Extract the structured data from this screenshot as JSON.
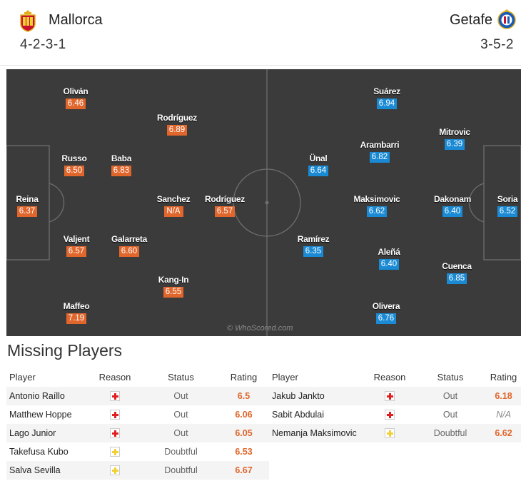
{
  "home": {
    "name": "Mallorca",
    "formation": "4-2-3-1",
    "crest": "mallorca-crest-icon",
    "color": "#e0662c",
    "players": [
      {
        "name": "Oliván",
        "rating": "6.46"
      },
      {
        "name": "Rodríguez",
        "rating": "6.89"
      },
      {
        "name": "Russo",
        "rating": "6.50"
      },
      {
        "name": "Baba",
        "rating": "6.83"
      },
      {
        "name": "Reina",
        "rating": "6.37"
      },
      {
        "name": "Sanchez",
        "rating": "N/A"
      },
      {
        "name": "Rodríguez",
        "rating": "6.57"
      },
      {
        "name": "Valjent",
        "rating": "6.57"
      },
      {
        "name": "Galarreta",
        "rating": "6.60"
      },
      {
        "name": "Kang-In",
        "rating": "6.55"
      },
      {
        "name": "Maffeo",
        "rating": "7.19"
      }
    ]
  },
  "away": {
    "name": "Getafe",
    "formation": "3-5-2",
    "crest": "getafe-crest-icon",
    "color": "#1a8ad4",
    "players": [
      {
        "name": "Suárez",
        "rating": "6.94"
      },
      {
        "name": "Mitrovic",
        "rating": "6.39"
      },
      {
        "name": "Arambarri",
        "rating": "6.82"
      },
      {
        "name": "Ünal",
        "rating": "6.64"
      },
      {
        "name": "Maksimovic",
        "rating": "6.62"
      },
      {
        "name": "Dakonam",
        "rating": "6.40"
      },
      {
        "name": "Soria",
        "rating": "6.52"
      },
      {
        "name": "Ramírez",
        "rating": "6.35"
      },
      {
        "name": "Aleñá",
        "rating": "6.40"
      },
      {
        "name": "Cuenca",
        "rating": "6.85"
      },
      {
        "name": "Olivera",
        "rating": "6.76"
      }
    ]
  },
  "watermark": "© WhoScored.com",
  "missing": {
    "title": "Missing Players",
    "columns": {
      "player": "Player",
      "reason": "Reason",
      "status": "Status",
      "rating": "Rating"
    },
    "home": [
      {
        "player": "Antonio Raíllo",
        "reason": "injury-icon",
        "status": "Out",
        "rating": "6.5"
      },
      {
        "player": "Matthew Hoppe",
        "reason": "injury-icon",
        "status": "Out",
        "rating": "6.06"
      },
      {
        "player": "Lago Junior",
        "reason": "injury-icon",
        "status": "Out",
        "rating": "6.05"
      },
      {
        "player": "Takefusa Kubo",
        "reason": "doubtful-icon",
        "status": "Doubtful",
        "rating": "6.53"
      },
      {
        "player": "Salva Sevilla",
        "reason": "doubtful-icon",
        "status": "Doubtful",
        "rating": "6.67"
      }
    ],
    "away": [
      {
        "player": "Jakub Jankto",
        "reason": "injury-icon",
        "status": "Out",
        "rating": "6.18"
      },
      {
        "player": "Sabit Abdulai",
        "reason": "injury-icon",
        "status": "Out",
        "rating": "N/A"
      },
      {
        "player": "Nemanja Maksimovic",
        "reason": "doubtful-icon",
        "status": "Doubtful",
        "rating": "6.62"
      }
    ]
  }
}
